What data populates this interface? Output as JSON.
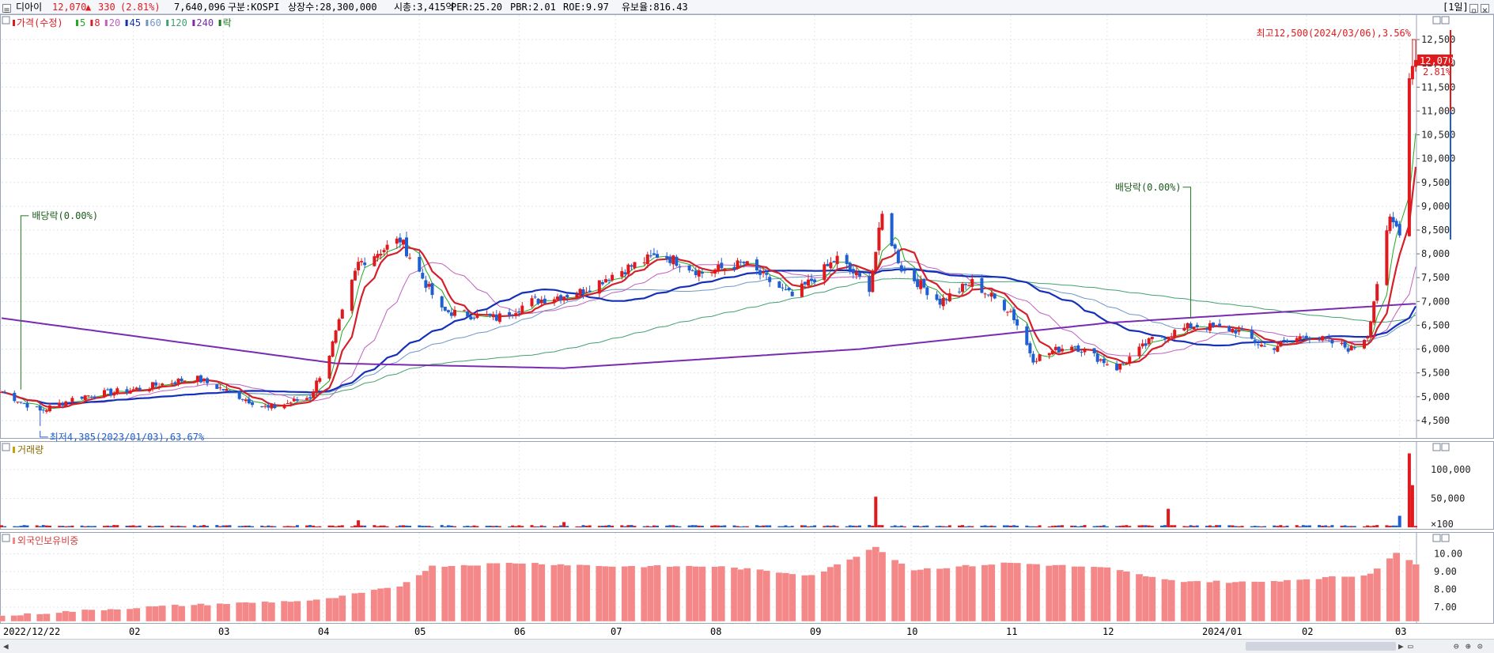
{
  "header": {
    "name": "디아이",
    "price": "12,070",
    "arrow": "▲",
    "change": "330",
    "change_pct": "(2.81%)",
    "volume": "7,640,096",
    "market": "구분:KOSPI",
    "shares": "상장수:28,300,000",
    "market_cap": "시총:3,415억",
    "per": "PER:25.20",
    "pbr": "PBR:2.01",
    "roe": "ROE:9.97",
    "retention": "유보율:816.43",
    "period": "[1일]"
  },
  "legend": {
    "price": "가격(수정)",
    "ma": [
      "5",
      "8",
      "20",
      "45",
      "60",
      "120",
      "240"
    ],
    "ex_div": "락"
  },
  "annotations": {
    "high": "최고12,500(2024/03/06),3.56%",
    "low": "최저4,385(2023/01/03),63.67%",
    "div1": "배당락(0.00%)",
    "div2": "배당락(0.00%)",
    "current_price": "12,070",
    "current_pct": "2.81%"
  },
  "volume_label": "거래량",
  "foreign_label": "외국인보유비중",
  "colors": {
    "up": "#e0191d",
    "down": "#1f5fd0",
    "ma5": "#22aa22",
    "ma8": "#d4202a",
    "ma20": "#c060c0",
    "ma45": "#1530b8",
    "ma60": "#6e96c8",
    "ma120": "#42a070",
    "ma240": "#7a2cb0",
    "foreign_bar": "#f48888"
  },
  "chart_data": [
    {
      "type": "candlestick",
      "title": "가격(수정)",
      "x_range": [
        "2022/12/22",
        "2024/03/06"
      ],
      "ylim": [
        4200,
        12700
      ],
      "yticks": [
        "12,500",
        "12,000",
        "11,500",
        "11,000",
        "10,500",
        "10,000",
        "9,500",
        "9,000",
        "8,500",
        "8,000",
        "7,500",
        "7,000",
        "6,500",
        "6,000",
        "5,500",
        "5,000",
        "4,500"
      ],
      "close_path": [
        [
          "2022/12/22",
          5100
        ],
        [
          "2023/01/03",
          4700
        ],
        [
          "2023/01/15",
          5000
        ],
        [
          "2023/02/01",
          5150
        ],
        [
          "2023/02/20",
          5400
        ],
        [
          "2023/03/01",
          5150
        ],
        [
          "2023/03/15",
          4750
        ],
        [
          "2023/03/28",
          5000
        ],
        [
          "2023/04/03",
          5900
        ],
        [
          "2023/04/12",
          7800
        ],
        [
          "2023/04/25",
          8300
        ],
        [
          "2023/05/08",
          6800
        ],
        [
          "2023/05/25",
          6650
        ],
        [
          "2023/06/05",
          7000
        ],
        [
          "2023/06/20",
          7200
        ],
        [
          "2023/07/01",
          7600
        ],
        [
          "2023/07/15",
          8000
        ],
        [
          "2023/07/28",
          7600
        ],
        [
          "2023/08/10",
          7800
        ],
        [
          "2023/08/25",
          7100
        ],
        [
          "2023/09/08",
          7900
        ],
        [
          "2023/09/18",
          7300
        ],
        [
          "2023/09/22",
          8800
        ],
        [
          "2023/09/28",
          7700
        ],
        [
          "2023/10/10",
          7000
        ],
        [
          "2023/10/20",
          7400
        ],
        [
          "2023/11/01",
          6800
        ],
        [
          "2023/11/08",
          5800
        ],
        [
          "2023/11/20",
          6100
        ],
        [
          "2023/12/04",
          5600
        ],
        [
          "2023/12/15",
          6200
        ],
        [
          "2023/12/28",
          6500
        ],
        [
          "2024/01/10",
          6400
        ],
        [
          "2024/01/20",
          6000
        ],
        [
          "2024/02/01",
          6300
        ],
        [
          "2024/02/15",
          6000
        ],
        [
          "2024/02/20",
          6300
        ],
        [
          "2024/02/23",
          7400
        ],
        [
          "2024/02/27",
          8700
        ],
        [
          "2024/03/01",
          8500
        ],
        [
          "2024/03/04",
          11700
        ],
        [
          "2024/03/05",
          12070
        ]
      ],
      "ma240": [
        [
          "2022/12/22",
          6650
        ],
        [
          "2023/04/05",
          5700
        ],
        [
          "2023/06/15",
          5600
        ],
        [
          "2023/09/15",
          6000
        ],
        [
          "2023/12/01",
          6550
        ],
        [
          "2024/03/05",
          6950
        ]
      ],
      "high": {
        "x": "2024/03/06",
        "value": 12500
      },
      "low": {
        "x": "2023/01/03",
        "value": 4385
      }
    },
    {
      "type": "bar",
      "title": "거래량",
      "yticks": [
        "100,000",
        "50,000",
        "×100"
      ],
      "ylim": [
        0,
        130000
      ],
      "spikes": [
        [
          "2023/04/01",
          10000
        ],
        [
          "2023/04/12",
          12000
        ],
        [
          "2023/06/15",
          9000
        ],
        [
          "2023/09/20",
          53000
        ],
        [
          "2023/12/20",
          32000
        ],
        [
          "2024/02/25",
          62000
        ],
        [
          "2024/03/01",
          20000
        ],
        [
          "2024/03/04",
          128000
        ],
        [
          "2024/03/05",
          73000
        ]
      ]
    },
    {
      "type": "bar",
      "title": "외국인보유비중",
      "yticks": [
        "10.00",
        "9.00",
        "8.00",
        "7.00"
      ],
      "ylim": [
        6.2,
        10.6
      ],
      "values_path": [
        [
          "2022/12/22",
          6.5
        ],
        [
          "2023/01/15",
          6.8
        ],
        [
          "2023/02/15",
          7.1
        ],
        [
          "2023/03/15",
          7.3
        ],
        [
          "2023/04/01",
          7.4
        ],
        [
          "2023/04/25",
          8.2
        ],
        [
          "2023/05/05",
          9.3
        ],
        [
          "2023/06/01",
          9.5
        ],
        [
          "2023/07/01",
          9.3
        ],
        [
          "2023/08/01",
          9.3
        ],
        [
          "2023/09/01",
          8.8
        ],
        [
          "2023/09/20",
          10.4
        ],
        [
          "2023/10/01",
          9.1
        ],
        [
          "2023/11/01",
          9.5
        ],
        [
          "2023/12/01",
          9.2
        ],
        [
          "2023/12/20",
          8.5
        ],
        [
          "2024/01/15",
          8.4
        ],
        [
          "2024/02/01",
          8.6
        ],
        [
          "2024/02/20",
          8.8
        ],
        [
          "2024/03/01",
          10.2
        ],
        [
          "2024/03/05",
          9.4
        ]
      ]
    }
  ],
  "xaxis": {
    "labels": [
      "2022/12/22",
      "02",
      "03",
      "04",
      "05",
      "06",
      "07",
      "08",
      "09",
      "10",
      "11",
      "12",
      "2024/01",
      "02",
      "03"
    ]
  }
}
